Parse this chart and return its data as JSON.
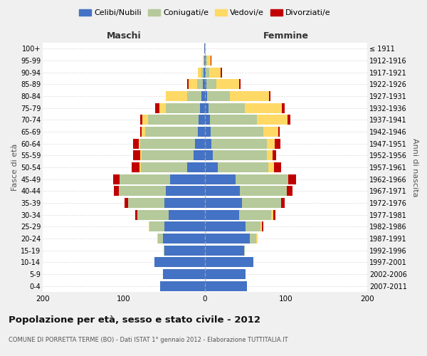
{
  "age_groups": [
    "0-4",
    "5-9",
    "10-14",
    "15-19",
    "20-24",
    "25-29",
    "30-34",
    "35-39",
    "40-44",
    "45-49",
    "50-54",
    "55-59",
    "60-64",
    "65-69",
    "70-74",
    "75-79",
    "80-84",
    "85-89",
    "90-94",
    "95-99",
    "100+"
  ],
  "birth_years": [
    "2007-2011",
    "2002-2006",
    "1997-2001",
    "1992-1996",
    "1987-1991",
    "1982-1986",
    "1977-1981",
    "1972-1976",
    "1967-1971",
    "1962-1966",
    "1957-1961",
    "1952-1956",
    "1947-1951",
    "1942-1946",
    "1937-1941",
    "1932-1936",
    "1927-1931",
    "1922-1926",
    "1917-1921",
    "1912-1916",
    "≤ 1911"
  ],
  "colors": {
    "celibi": "#4472c4",
    "coniugati": "#b5c99a",
    "vedovi": "#ffd966",
    "divorziati": "#c00000"
  },
  "maschi": {
    "celibi": [
      55,
      52,
      62,
      50,
      52,
      50,
      45,
      50,
      48,
      43,
      22,
      14,
      12,
      9,
      8,
      6,
      4,
      3,
      2,
      1,
      1
    ],
    "coniugati": [
      0,
      0,
      0,
      1,
      6,
      18,
      38,
      45,
      58,
      62,
      57,
      64,
      68,
      65,
      62,
      42,
      18,
      7,
      2,
      0,
      0
    ],
    "vedovi": [
      0,
      0,
      0,
      0,
      1,
      1,
      0,
      0,
      0,
      0,
      2,
      2,
      2,
      4,
      7,
      8,
      26,
      10,
      5,
      2,
      0
    ],
    "divorziati": [
      0,
      0,
      0,
      0,
      0,
      0,
      3,
      4,
      6,
      8,
      9,
      9,
      7,
      2,
      3,
      5,
      0,
      2,
      0,
      0,
      0
    ]
  },
  "femmine": {
    "celibi": [
      52,
      50,
      60,
      48,
      55,
      50,
      42,
      46,
      43,
      38,
      16,
      10,
      8,
      7,
      6,
      4,
      3,
      2,
      1,
      1,
      0
    ],
    "coniugati": [
      0,
      0,
      0,
      1,
      8,
      18,
      40,
      48,
      58,
      65,
      62,
      66,
      68,
      65,
      58,
      45,
      28,
      12,
      4,
      2,
      0
    ],
    "vedovi": [
      0,
      0,
      0,
      0,
      2,
      2,
      2,
      0,
      0,
      0,
      7,
      7,
      10,
      18,
      38,
      46,
      48,
      28,
      14,
      4,
      1
    ],
    "divorziati": [
      0,
      0,
      0,
      0,
      0,
      2,
      3,
      4,
      7,
      9,
      9,
      5,
      7,
      2,
      3,
      3,
      2,
      2,
      2,
      1,
      0
    ]
  },
  "title": "Popolazione per età, sesso e stato civile - 2012",
  "subtitle": "COMUNE DI PORRETTA TERME (BO) - Dati ISTAT 1° gennaio 2012 - Elaborazione TUTTITALIA.IT",
  "xlabel_left": "Maschi",
  "xlabel_right": "Femmine",
  "ylabel_left": "Fasce di età",
  "ylabel_right": "Anni di nascita",
  "xlim": 200,
  "legend_labels": [
    "Celibi/Nubili",
    "Coniugati/e",
    "Vedovi/e",
    "Divorziati/e"
  ],
  "bg_color": "#f0f0f0",
  "plot_bg": "#ffffff",
  "grid_color": "#cccccc"
}
